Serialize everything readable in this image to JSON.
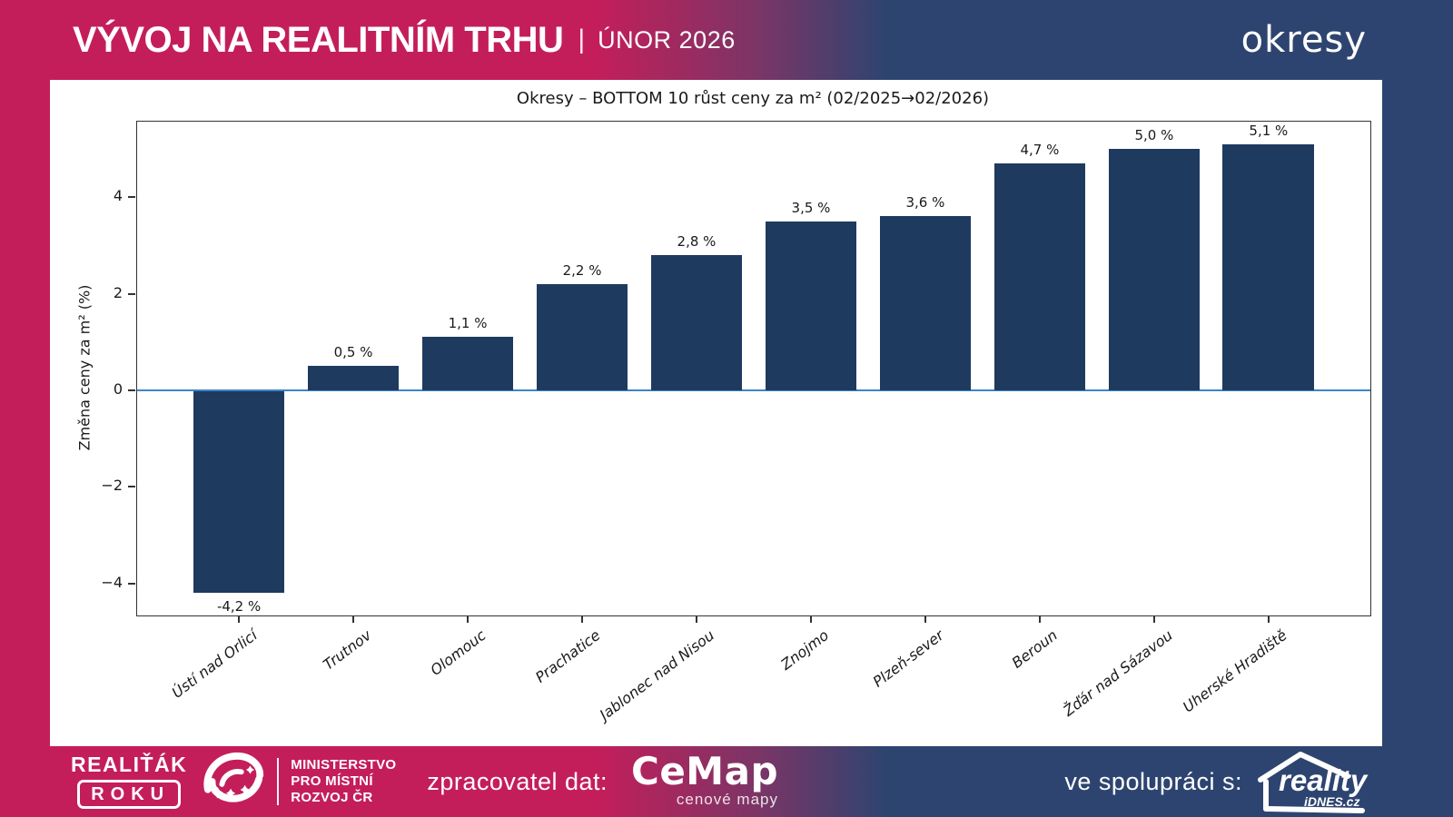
{
  "header": {
    "title": "VÝVOJ NA REALITNÍM TRHU",
    "separator": "|",
    "period": "ÚNOR 2026",
    "region_label": "okresy"
  },
  "chart_data": {
    "type": "bar",
    "title": "Okresy – BOTTOM 10 růst ceny za m² (02/2025→02/2026)",
    "ylabel": "Změna ceny za m² (%)",
    "categories": [
      "Ústí nad Orlicí",
      "Trutnov",
      "Olomouc",
      "Prachatice",
      "Jablonec nad Nisou",
      "Znojmo",
      "Plzeň-sever",
      "Beroun",
      "Žďár nad Sázavou",
      "Uherské Hradiště"
    ],
    "values": [
      -4.2,
      0.5,
      1.1,
      2.2,
      2.8,
      3.5,
      3.6,
      4.7,
      5.0,
      5.1
    ],
    "value_labels": [
      "-4,2 %",
      "0,5 %",
      "1,1 %",
      "2,2 %",
      "2,8 %",
      "3,5 %",
      "3,6 %",
      "4,7 %",
      "5,0 %",
      "5,1 %"
    ],
    "yticks": [
      4,
      2,
      0,
      -2,
      -4
    ],
    "ylim": [
      -4.665,
      5.565
    ],
    "xlim": [
      -0.89,
      9.89
    ],
    "bar_width_units": 0.8,
    "grid": false,
    "legend": "none",
    "bar_color": "#1f3a5f",
    "zero_line_color": "#3d85c8"
  },
  "footer": {
    "award_line1": "REALIŤÁK",
    "award_line2": "ROKU",
    "ministry_line1": "MINISTERSTVO",
    "ministry_line2": "PRO MÍSTNÍ",
    "ministry_line3": "ROZVOJ ČR",
    "provider_label": "zpracovatel dat:",
    "cemap_name": "CeMap",
    "cemap_subtitle": "cenové mapy",
    "partner_label": "ve spolupráci s:",
    "partner_name": "reality",
    "partner_sub": "iDNES.cz"
  }
}
